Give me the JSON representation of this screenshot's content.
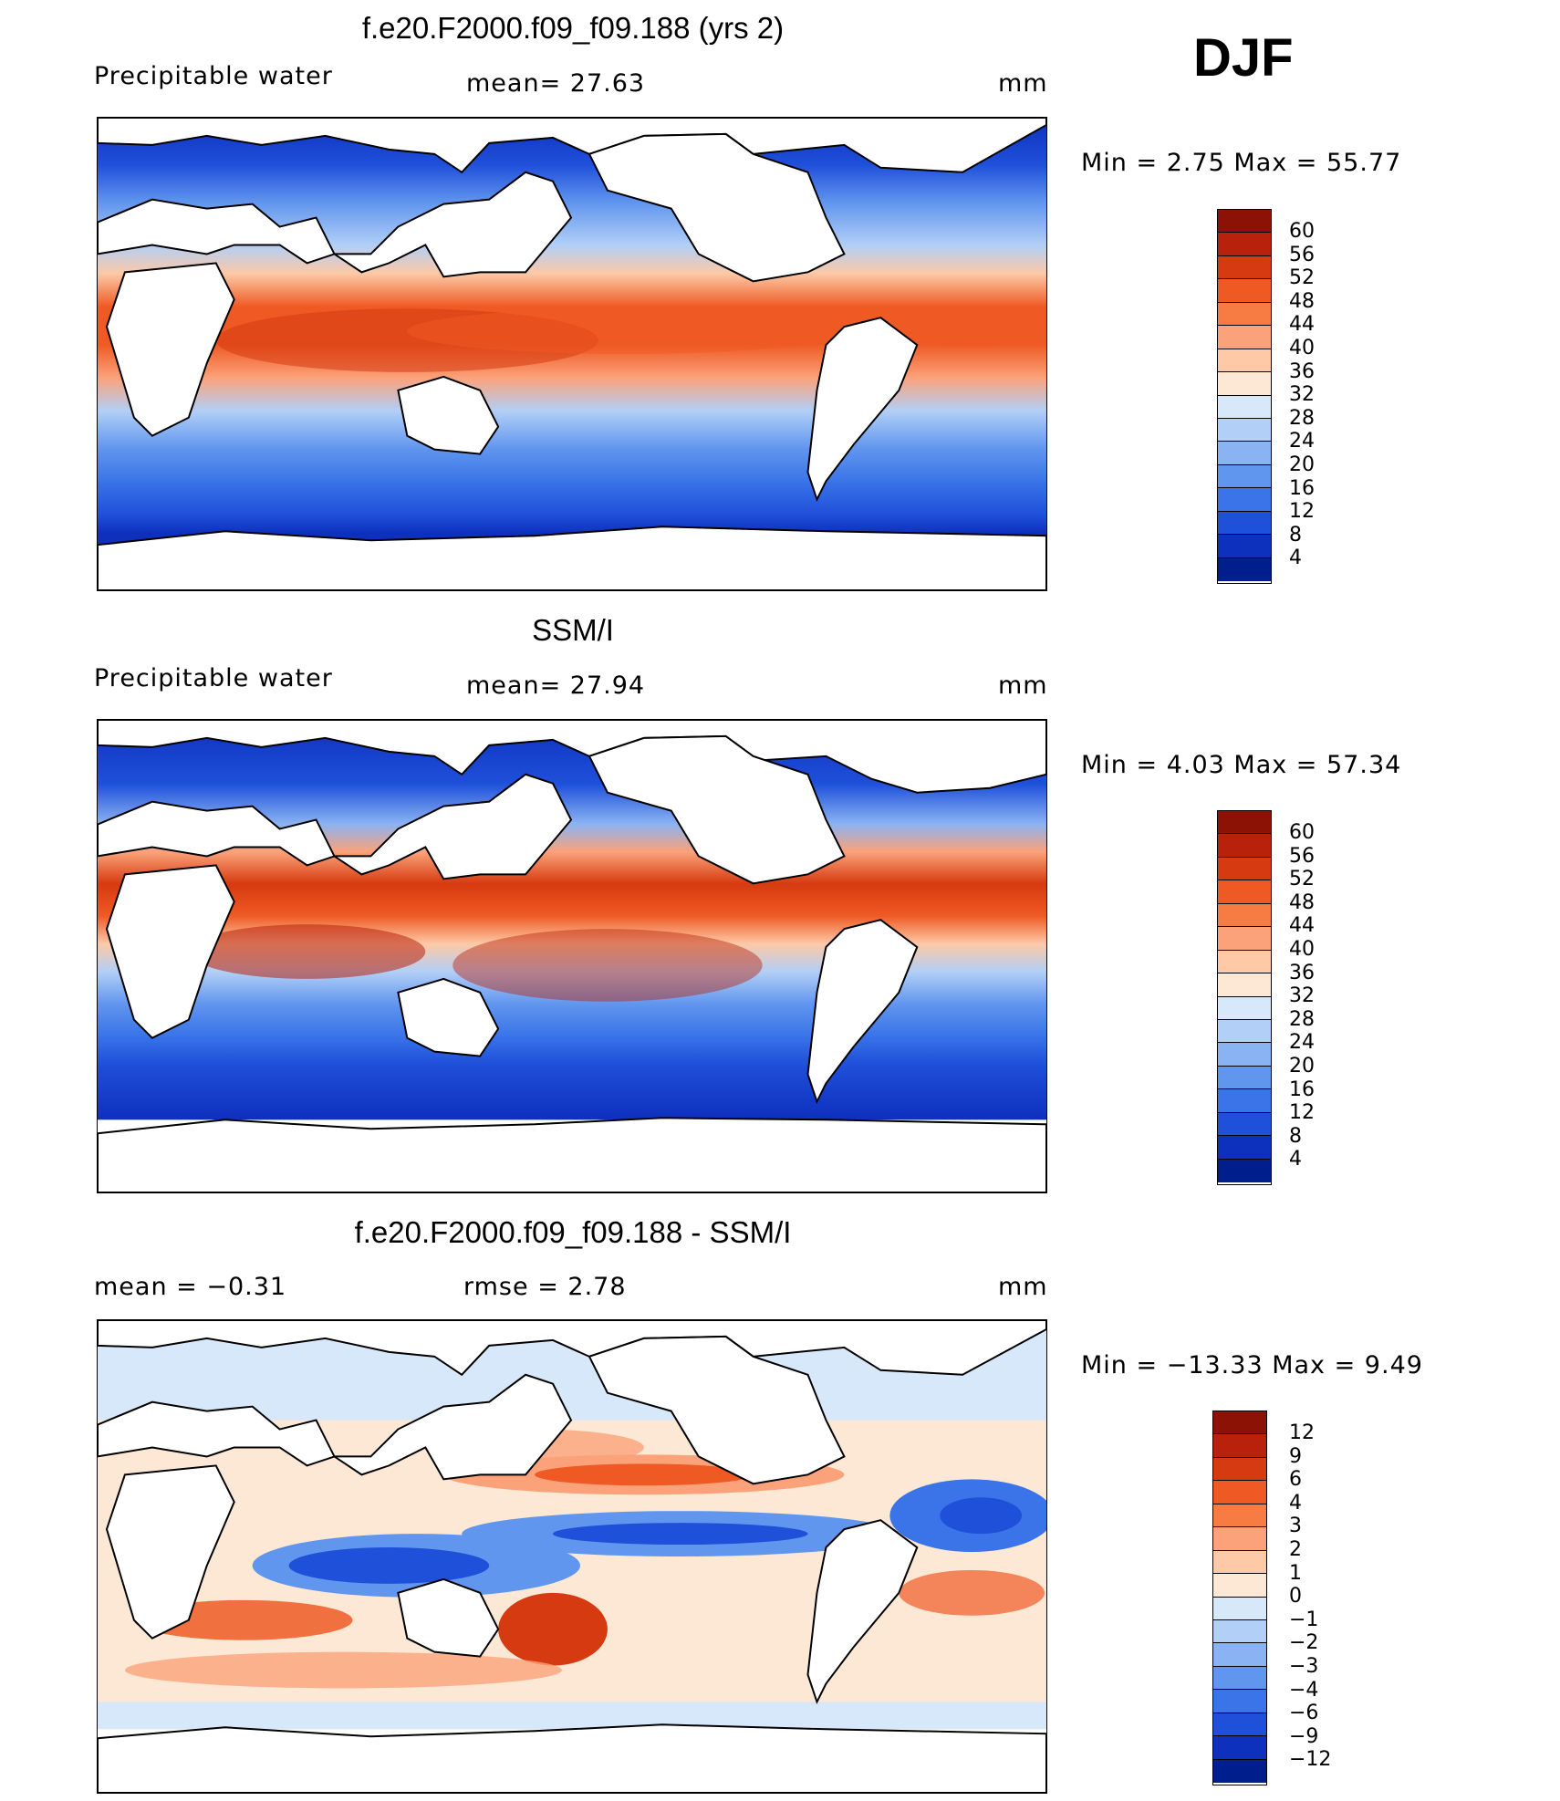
{
  "season": "DJF",
  "panels": [
    {
      "title": "f.e20.F2000.f09_f09.188 (yrs 2)",
      "left_label": "Precipitable water",
      "center_label": "mean=   27.63",
      "units": "mm",
      "minmax": "Min =    2.75 Max =   55.77",
      "colorbar": {
        "labels": [
          "60",
          "56",
          "52",
          "48",
          "44",
          "40",
          "36",
          "32",
          "28",
          "24",
          "20",
          "16",
          "12",
          "8",
          "4"
        ],
        "colors": [
          "#8c1206",
          "#b8220c",
          "#d63a10",
          "#ef5a24",
          "#f77c44",
          "#fba27a",
          "#fdc9a6",
          "#fde8d6",
          "#d8e8fb",
          "#b2cff7",
          "#8ab3f3",
          "#6196ee",
          "#3a74e8",
          "#1f50da",
          "#0d30bd",
          "#001f8c"
        ]
      }
    },
    {
      "title": "SSM/I",
      "left_label": "Precipitable water",
      "center_label": "mean=   27.94",
      "units": "mm",
      "minmax": "Min =    4.03 Max =   57.34",
      "colorbar": {
        "labels": [
          "60",
          "56",
          "52",
          "48",
          "44",
          "40",
          "36",
          "32",
          "28",
          "24",
          "20",
          "16",
          "12",
          "8",
          "4"
        ],
        "colors": [
          "#8c1206",
          "#b8220c",
          "#d63a10",
          "#ef5a24",
          "#f77c44",
          "#fba27a",
          "#fdc9a6",
          "#fde8d6",
          "#d8e8fb",
          "#b2cff7",
          "#8ab3f3",
          "#6196ee",
          "#3a74e8",
          "#1f50da",
          "#0d30bd",
          "#001f8c"
        ]
      }
    },
    {
      "title": "f.e20.F2000.f09_f09.188 - SSM/I",
      "left_label": "mean =   −0.31",
      "center_label": "rmse =    2.78",
      "units": "mm",
      "minmax": "Min = −13.33 Max =    9.49",
      "colorbar": {
        "labels": [
          "12",
          "9",
          "6",
          "4",
          "3",
          "2",
          "1",
          "0",
          "−1",
          "−2",
          "−3",
          "−4",
          "−6",
          "−9",
          "−12"
        ],
        "colors": [
          "#8c1206",
          "#b8220c",
          "#d63a10",
          "#ef5a24",
          "#f77c44",
          "#fba27a",
          "#fdc9a6",
          "#fde8d6",
          "#d8e8fb",
          "#b2cff7",
          "#8ab3f3",
          "#6196ee",
          "#3a74e8",
          "#1f50da",
          "#0d30bd",
          "#001f8c"
        ]
      }
    }
  ]
}
